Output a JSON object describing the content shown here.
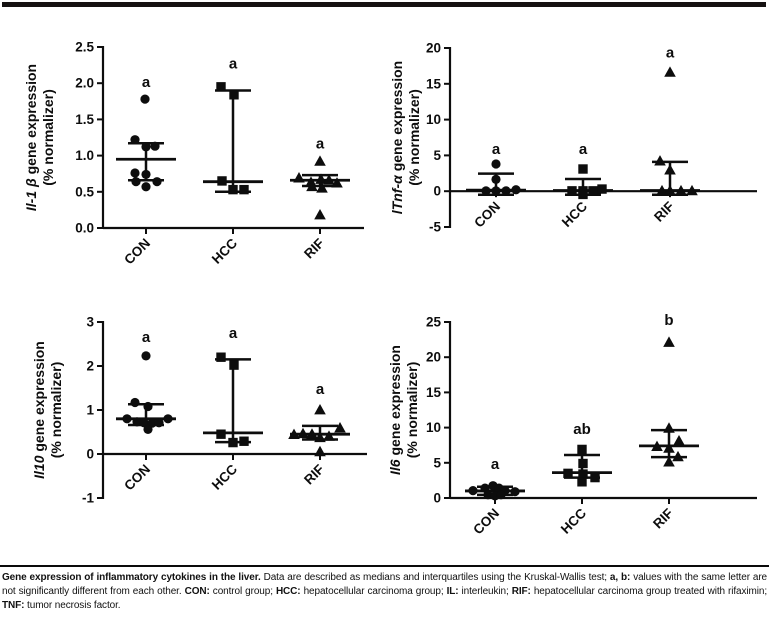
{
  "colors": {
    "ink": "#0d0d0d",
    "background": "#ffffff"
  },
  "caption": {
    "segments": [
      {
        "text": "Gene expression of inflammatory cytokines in the liver.",
        "bold": true
      },
      {
        "text": " Data are described as medians and interquartiles using the Kruskal-Wallis test; ",
        "bold": false
      },
      {
        "text": "a, b:",
        "bold": true
      },
      {
        "text": " values with the same letter are not significantly different from each other. ",
        "bold": false
      },
      {
        "text": "CON:",
        "bold": true
      },
      {
        "text": " control group; ",
        "bold": false
      },
      {
        "text": "HCC:",
        "bold": true
      },
      {
        "text": " hepatocellular carcinoma group; ",
        "bold": false
      },
      {
        "text": "IL:",
        "bold": true
      },
      {
        "text": " interleukin; ",
        "bold": false
      },
      {
        "text": "RIF:",
        "bold": true
      },
      {
        "text": " hepatocellular carcinoma group treated with rifaximin; ",
        "bold": false
      },
      {
        "text": "TNF:",
        "bold": true
      },
      {
        "text": " tumor necrosis factor.",
        "bold": false
      }
    ]
  },
  "chart_data": [
    {
      "id": "il1b",
      "type": "scatter",
      "gene_italic": "Il-1 β",
      "ylabel_rest": " gene expression",
      "ylabel_line2": "(% normalizer)",
      "ylim": [
        0,
        2.5
      ],
      "baseline": 0,
      "ytick_values": [
        0,
        0.5,
        1,
        1.5,
        2,
        2.5
      ],
      "ytick_labels": [
        "0.0",
        "0.5",
        "1.0",
        "1.5",
        "2.0",
        "2.5"
      ],
      "categories": [
        "CON",
        "HCC",
        "RIF"
      ],
      "groups": [
        {
          "name": "CON",
          "marker": "circle",
          "letter": "a",
          "letter_v": 1.95,
          "median": 0.95,
          "q1": 0.66,
          "q3": 1.17,
          "points": [
            [
              -1,
              1.78
            ],
            [
              -11,
              1.22
            ],
            [
              0,
              1.12
            ],
            [
              9,
              1.13
            ],
            [
              -11,
              0.76
            ],
            [
              0,
              0.74
            ],
            [
              -10,
              0.64
            ],
            [
              11,
              0.64
            ],
            [
              0,
              0.57
            ]
          ]
        },
        {
          "name": "HCC",
          "marker": "square",
          "letter": "a",
          "letter_v": 2.2,
          "median": 0.64,
          "q1": 0.5,
          "q3": 1.9,
          "points": [
            [
              -12,
              1.95
            ],
            [
              1,
              1.84
            ],
            [
              -11,
              0.65
            ],
            [
              0,
              0.53
            ],
            [
              11,
              0.53
            ]
          ]
        },
        {
          "name": "RIF",
          "marker": "triangle",
          "letter": "a",
          "letter_v": 1.1,
          "median": 0.66,
          "q1": 0.58,
          "q3": 0.73,
          "points": [
            [
              0,
              0.92
            ],
            [
              -21,
              0.69
            ],
            [
              -9,
              0.63
            ],
            [
              1,
              0.67
            ],
            [
              9,
              0.66
            ],
            [
              17,
              0.62
            ],
            [
              -8,
              0.57
            ],
            [
              2,
              0.55
            ],
            [
              0,
              0.18
            ]
          ]
        }
      ]
    },
    {
      "id": "tnfa",
      "type": "scatter",
      "gene_italic": "lTnf-α",
      "ylabel_rest": " gene expression",
      "ylabel_line2": "(% normalizer)",
      "ylim": [
        -5,
        20
      ],
      "baseline": 0,
      "ytick_values": [
        -5,
        0,
        5,
        10,
        15,
        20
      ],
      "ytick_labels": [
        "-5",
        "0",
        "5",
        "10",
        "15",
        "20"
      ],
      "categories": [
        "CON",
        "HCC",
        "RIF"
      ],
      "groups": [
        {
          "name": "CON",
          "marker": "circle",
          "letter": "a",
          "letter_v": 5.2,
          "median": 0.15,
          "q1": -0.5,
          "q3": 2.45,
          "points": [
            [
              0,
              3.8
            ],
            [
              0,
              1.65
            ],
            [
              -10,
              0.05
            ],
            [
              0,
              0.05
            ],
            [
              10,
              0.05
            ],
            [
              20,
              0.2
            ]
          ]
        },
        {
          "name": "HCC",
          "marker": "square",
          "letter": "a",
          "letter_v": 5.2,
          "median": 0.1,
          "q1": -0.5,
          "q3": 1.7,
          "points": [
            [
              0,
              3.1
            ],
            [
              -11,
              0.05
            ],
            [
              0,
              0.05
            ],
            [
              10,
              0.05
            ],
            [
              19,
              0.3
            ],
            [
              0,
              -0.45
            ]
          ]
        },
        {
          "name": "RIF",
          "marker": "triangle",
          "letter": "a",
          "letter_v": 18.7,
          "median": 0.1,
          "q1": -0.5,
          "q3": 4.1,
          "points": [
            [
              0,
              16.6
            ],
            [
              -10,
              4.2
            ],
            [
              0,
              2.95
            ],
            [
              -8,
              0.05
            ],
            [
              0,
              0.05
            ],
            [
              11,
              0.05
            ],
            [
              22,
              0.05
            ]
          ]
        }
      ]
    },
    {
      "id": "il10",
      "type": "scatter",
      "gene_italic": "Il10",
      "ylabel_rest": " gene expression",
      "ylabel_line2": "(% normalizer)",
      "ylim": [
        -1,
        3
      ],
      "baseline": 0,
      "ytick_values": [
        -1,
        0,
        1,
        2,
        3
      ],
      "ytick_labels": [
        "-1",
        "0",
        "1",
        "2",
        "3"
      ],
      "categories": [
        "CON",
        "HCC",
        "RIF"
      ],
      "groups": [
        {
          "name": "CON",
          "marker": "circle",
          "letter": "a",
          "letter_v": 2.55,
          "median": 0.8,
          "q1": 0.66,
          "q3": 1.13,
          "points": [
            [
              0,
              2.23
            ],
            [
              -11,
              1.17
            ],
            [
              2,
              1.08
            ],
            [
              -19,
              0.8
            ],
            [
              -9,
              0.73
            ],
            [
              -2,
              0.71
            ],
            [
              6,
              0.7
            ],
            [
              13,
              0.71
            ],
            [
              22,
              0.8
            ],
            [
              2,
              0.56
            ]
          ]
        },
        {
          "name": "HCC",
          "marker": "square",
          "letter": "a",
          "letter_v": 2.64,
          "median": 0.48,
          "q1": 0.27,
          "q3": 2.15,
          "points": [
            [
              -12,
              2.2
            ],
            [
              1,
              2.02
            ],
            [
              -12,
              0.45
            ],
            [
              0,
              0.26
            ],
            [
              11,
              0.29
            ]
          ]
        },
        {
          "name": "RIF",
          "marker": "triangle",
          "letter": "a",
          "letter_v": 1.36,
          "median": 0.45,
          "q1": 0.33,
          "q3": 0.64,
          "points": [
            [
              0,
              1.0
            ],
            [
              -26,
              0.44
            ],
            [
              -17,
              0.46
            ],
            [
              -8,
              0.45
            ],
            [
              0,
              0.37
            ],
            [
              9,
              0.4
            ],
            [
              20,
              0.59
            ],
            [
              0,
              0.05
            ]
          ]
        }
      ]
    },
    {
      "id": "il6",
      "type": "scatter",
      "gene_italic": "Il6",
      "ylabel_rest": " gene expression",
      "ylabel_line2": "(% normalizer)",
      "ylim": [
        0,
        25
      ],
      "baseline": 0,
      "ytick_values": [
        0,
        5,
        10,
        15,
        20,
        25
      ],
      "ytick_labels": [
        "0",
        "5",
        "10",
        "15",
        "20",
        "25"
      ],
      "categories": [
        "CON",
        "HCC",
        "RIF"
      ],
      "groups": [
        {
          "name": "CON",
          "marker": "circle",
          "letter": "a",
          "letter_v": 4.1,
          "median": 1.0,
          "q1": 0.45,
          "q3": 1.6,
          "points": [
            [
              -22,
              1.05
            ],
            [
              -10,
              1.4
            ],
            [
              -2,
              1.75
            ],
            [
              4,
              1.4
            ],
            [
              10,
              1.05
            ],
            [
              20,
              0.9
            ],
            [
              -7,
              0.45
            ],
            [
              0,
              0.3
            ],
            [
              6,
              0.45
            ]
          ]
        },
        {
          "name": "HCC",
          "marker": "square",
          "letter": "ab",
          "letter_v": 9.1,
          "median": 3.6,
          "q1": 2.9,
          "q3": 6.1,
          "points": [
            [
              0,
              6.9
            ],
            [
              1,
              4.9
            ],
            [
              -14,
              3.5
            ],
            [
              1,
              3.4
            ],
            [
              13,
              2.9
            ],
            [
              0,
              2.3
            ]
          ]
        },
        {
          "name": "RIF",
          "marker": "triangle",
          "letter": "b",
          "letter_v": 24.6,
          "median": 7.4,
          "q1": 5.8,
          "q3": 9.65,
          "points": [
            [
              0,
              22.1
            ],
            [
              0,
              9.9
            ],
            [
              10,
              8.1
            ],
            [
              -12,
              7.3
            ],
            [
              0,
              7.05
            ],
            [
              9,
              5.85
            ],
            [
              0,
              5.1
            ]
          ]
        }
      ]
    }
  ]
}
